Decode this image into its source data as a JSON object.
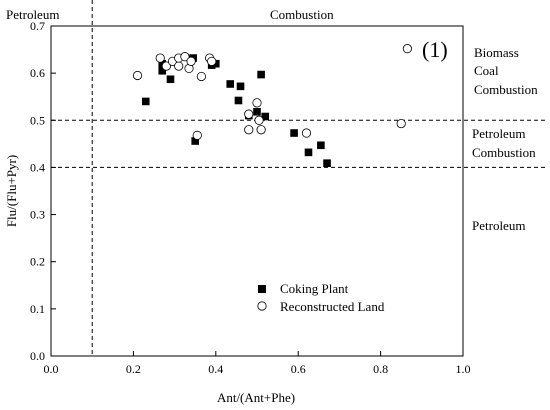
{
  "chart_data": {
    "type": "scatter",
    "panel_label": "(1)",
    "xlabel": "Ant/(Ant+Phe)",
    "ylabel": "Flu/(Flu+Pyr)",
    "xlim": [
      0.0,
      1.0
    ],
    "ylim": [
      0.0,
      0.7
    ],
    "x_ticks": [
      "0.0",
      "0.2",
      "0.4",
      "0.6",
      "0.8",
      "1.0"
    ],
    "y_ticks": [
      "0.0",
      "0.1",
      "0.2",
      "0.3",
      "0.4",
      "0.5",
      "0.6",
      "0.7"
    ],
    "x_tick_values": [
      0.0,
      0.2,
      0.4,
      0.6,
      0.8,
      1.0
    ],
    "y_tick_values": [
      0.0,
      0.1,
      0.2,
      0.3,
      0.4,
      0.5,
      0.6,
      0.7
    ],
    "grid": false,
    "legend_position": "bottom-center",
    "reference_lines": [
      {
        "axis": "x",
        "value": 0.1,
        "style": "dashed"
      },
      {
        "axis": "y",
        "value": 0.5,
        "style": "dashed"
      },
      {
        "axis": "y",
        "value": 0.4,
        "style": "dashed"
      }
    ],
    "zone_labels": {
      "top_left": "Petroleum",
      "top_right": "Combustion",
      "right_1_line1": "Biomass",
      "right_1_line2": "Coal",
      "right_1_line3": "Combustion",
      "right_2_line1": "Petroleum",
      "right_2_line2": "Combustion",
      "right_3": "Petroleum"
    },
    "series": [
      {
        "name": "Coking Plant",
        "marker": "filled-square",
        "color": "#000000",
        "points": [
          [
            0.23,
            0.54
          ],
          [
            0.27,
            0.62
          ],
          [
            0.27,
            0.605
          ],
          [
            0.29,
            0.587
          ],
          [
            0.345,
            0.632
          ],
          [
            0.35,
            0.456
          ],
          [
            0.39,
            0.617
          ],
          [
            0.4,
            0.62
          ],
          [
            0.435,
            0.577
          ],
          [
            0.455,
            0.542
          ],
          [
            0.46,
            0.572
          ],
          [
            0.48,
            0.51
          ],
          [
            0.5,
            0.518
          ],
          [
            0.51,
            0.597
          ],
          [
            0.52,
            0.508
          ],
          [
            0.59,
            0.473
          ],
          [
            0.625,
            0.432
          ],
          [
            0.655,
            0.447
          ],
          [
            0.67,
            0.409
          ]
        ]
      },
      {
        "name": "Reconstructed Land",
        "marker": "hollow-circle",
        "color": "#000000",
        "points": [
          [
            0.21,
            0.595
          ],
          [
            0.265,
            0.632
          ],
          [
            0.28,
            0.615
          ],
          [
            0.295,
            0.625
          ],
          [
            0.31,
            0.615
          ],
          [
            0.31,
            0.632
          ],
          [
            0.325,
            0.635
          ],
          [
            0.335,
            0.61
          ],
          [
            0.34,
            0.625
          ],
          [
            0.355,
            0.468
          ],
          [
            0.365,
            0.593
          ],
          [
            0.385,
            0.632
          ],
          [
            0.39,
            0.625
          ],
          [
            0.48,
            0.48
          ],
          [
            0.48,
            0.513
          ],
          [
            0.5,
            0.537
          ],
          [
            0.505,
            0.5
          ],
          [
            0.51,
            0.48
          ],
          [
            0.62,
            0.473
          ],
          [
            0.85,
            0.493
          ],
          [
            0.865,
            0.652
          ]
        ]
      }
    ]
  }
}
